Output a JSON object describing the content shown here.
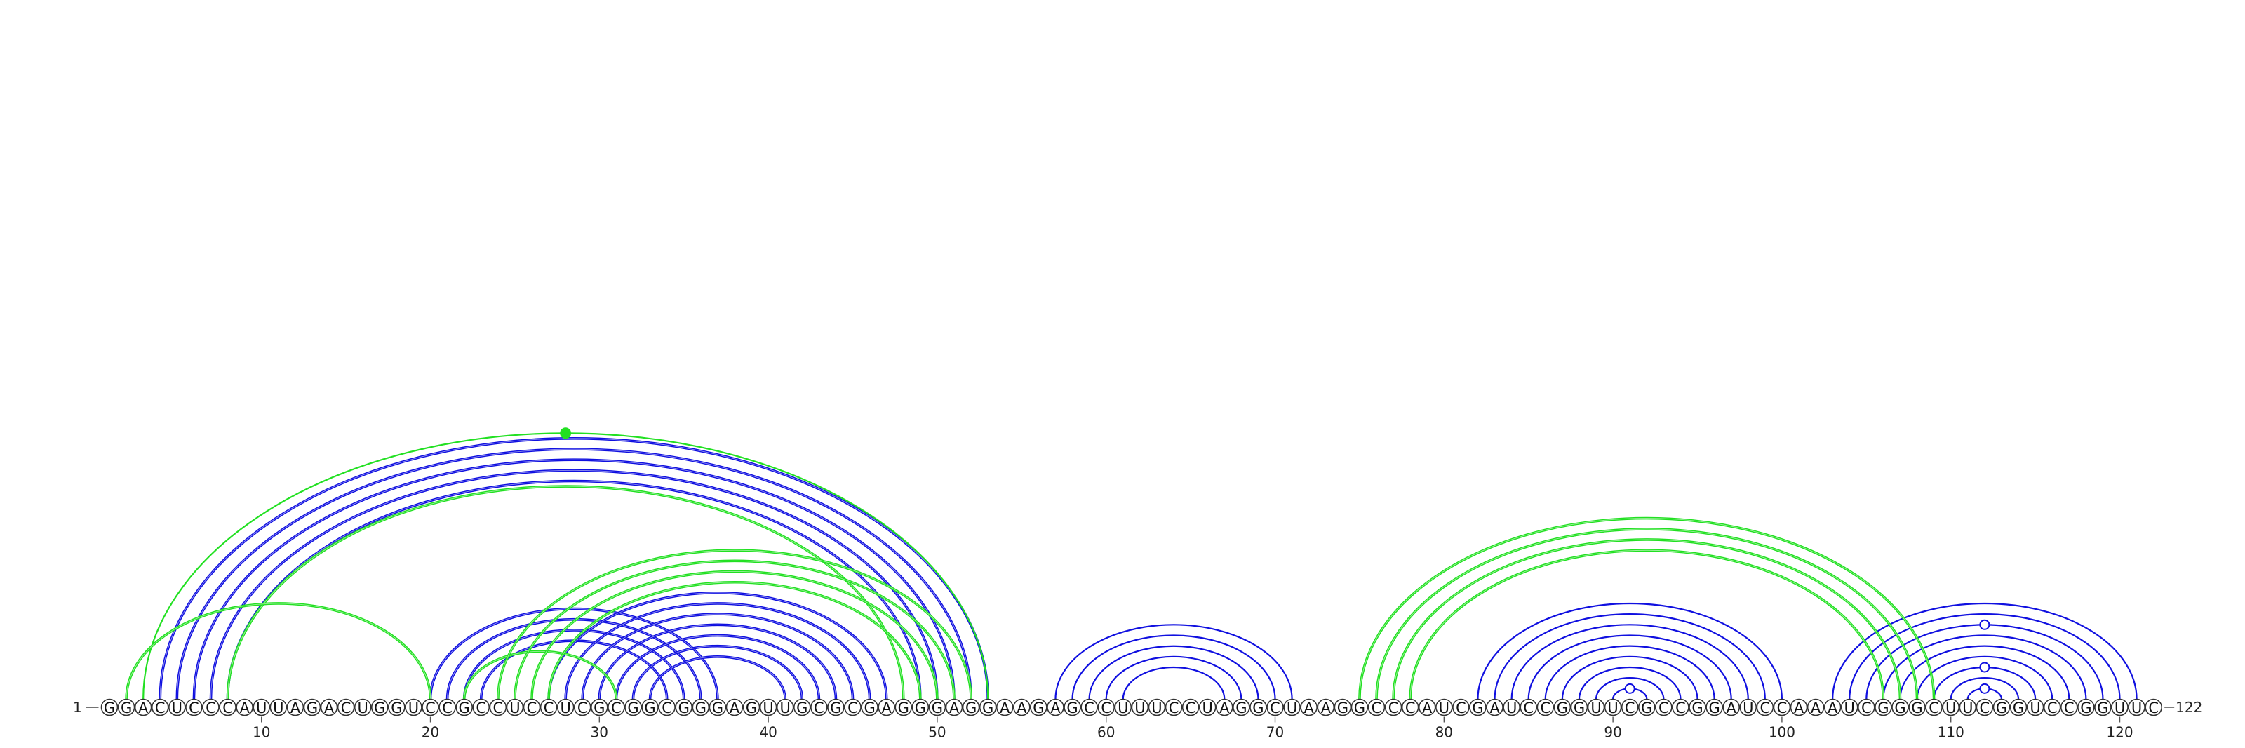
{
  "diagram": {
    "type": "rna-arc-diagram",
    "sequence": "GGACUCCCAUUAGACUGGUCCGCCUCCUCGCGGCGGGAGUUGCGCGAGGGAGGAAGAGCCUUUCCUAGGCUAAGGCCCAUCGAUCCGGUUCGCCGGAUCCAAAUCGGGCUUCGGUCCGGUUC",
    "start_label": "1",
    "end_label": "122",
    "ticks": [
      10,
      20,
      30,
      40,
      50,
      60,
      70,
      80,
      90,
      100,
      110,
      120
    ],
    "colors": {
      "blue": "#1010e0",
      "green": "#22e022",
      "outline": "#333333"
    },
    "arc_groups": [
      {
        "name": "outer-blue-stem",
        "color": "blue",
        "weight": "bold",
        "pairs": [
          [
            4,
            53
          ],
          [
            5,
            52
          ],
          [
            6,
            51
          ],
          [
            7,
            50
          ],
          [
            8,
            49
          ]
        ]
      },
      {
        "name": "blue-stem-20",
        "color": "blue",
        "weight": "bold",
        "pairs": [
          [
            20,
            37
          ],
          [
            21,
            36
          ],
          [
            22,
            35
          ],
          [
            23,
            34
          ]
        ]
      },
      {
        "name": "blue-stem-27",
        "color": "blue",
        "weight": "bold",
        "pairs": [
          [
            27,
            47
          ],
          [
            28,
            46
          ],
          [
            29,
            45
          ],
          [
            30,
            44
          ],
          [
            31,
            43
          ],
          [
            32,
            42
          ],
          [
            33,
            41
          ]
        ]
      },
      {
        "name": "blue-hairpin-57",
        "color": "blue",
        "weight": "thin",
        "pairs": [
          [
            57,
            71
          ],
          [
            58,
            70
          ],
          [
            59,
            69
          ],
          [
            60,
            68
          ],
          [
            61,
            67
          ]
        ]
      },
      {
        "name": "blue-hairpin-82",
        "color": "blue",
        "weight": "thin",
        "pairs": [
          [
            82,
            100
          ],
          [
            83,
            99
          ],
          [
            84,
            98
          ],
          [
            85,
            97
          ],
          [
            86,
            96
          ],
          [
            87,
            95
          ],
          [
            88,
            94
          ],
          [
            89,
            93
          ],
          [
            90,
            92
          ]
        ]
      },
      {
        "name": "blue-hairpin-103",
        "color": "blue",
        "weight": "thin",
        "pairs": [
          [
            103,
            121
          ],
          [
            104,
            120
          ],
          [
            105,
            119
          ],
          [
            106,
            118
          ],
          [
            107,
            117
          ],
          [
            108,
            116
          ],
          [
            109,
            115
          ],
          [
            110,
            114
          ],
          [
            111,
            113
          ]
        ]
      },
      {
        "name": "green-outer",
        "color": "green",
        "weight": "thin",
        "pairs": [
          [
            3,
            53
          ]
        ]
      },
      {
        "name": "green-pseudoknot-a",
        "color": "green",
        "weight": "bold",
        "pairs": [
          [
            8,
            48
          ]
        ]
      },
      {
        "name": "green-pseudoknot-b",
        "color": "green",
        "weight": "bold",
        "pairs": [
          [
            2,
            20
          ]
        ]
      },
      {
        "name": "green-pseudoknot-c",
        "color": "green",
        "weight": "bold",
        "pairs": [
          [
            22,
            31
          ]
        ]
      },
      {
        "name": "green-stem-24",
        "color": "green",
        "weight": "bold",
        "pairs": [
          [
            24,
            52
          ],
          [
            25,
            51
          ],
          [
            26,
            50
          ],
          [
            27,
            49
          ]
        ]
      },
      {
        "name": "green-stem-75",
        "color": "green",
        "weight": "bold",
        "pairs": [
          [
            75,
            109
          ],
          [
            76,
            108
          ],
          [
            77,
            107
          ],
          [
            78,
            106
          ]
        ]
      }
    ],
    "markers": [
      {
        "kind": "filled-dot",
        "color": "green",
        "on_pair": [
          3,
          53
        ]
      },
      {
        "kind": "open-dot",
        "color": "blue",
        "on_pair": [
          90,
          92
        ]
      },
      {
        "kind": "open-dot",
        "color": "blue",
        "on_pair": [
          111,
          113
        ]
      },
      {
        "kind": "open-dot",
        "color": "blue",
        "on_pair": [
          109,
          115
        ]
      },
      {
        "kind": "open-dot",
        "color": "blue",
        "on_pair": [
          105,
          119
        ]
      }
    ]
  }
}
